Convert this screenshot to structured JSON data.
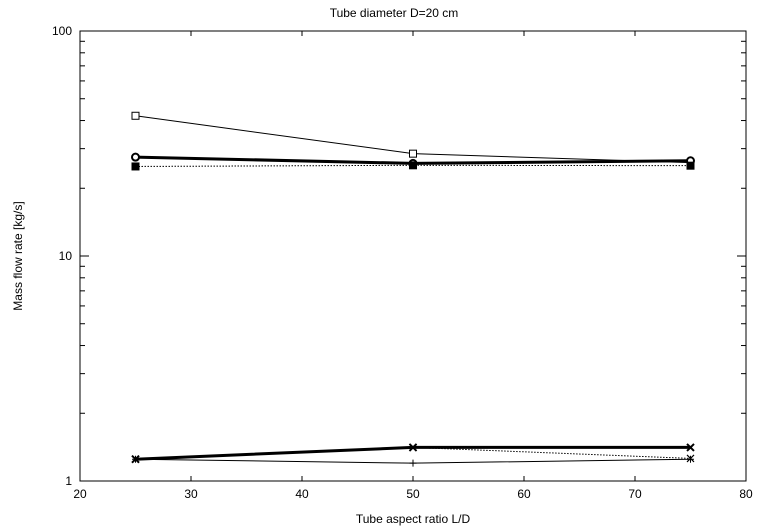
{
  "chart_data": {
    "type": "line",
    "title": "Tube diameter D=20 cm",
    "xlabel": "Tube aspect ratio L/D",
    "ylabel": "Mass flow rate [kg/s]",
    "xlim": [
      20,
      80
    ],
    "ylim": [
      1,
      100
    ],
    "yscale": "log",
    "grid": false,
    "x_ticks": [
      20,
      30,
      40,
      50,
      60,
      70,
      80
    ],
    "y_ticks": [
      1,
      10,
      100
    ],
    "x": [
      25,
      50,
      75
    ],
    "series": [
      {
        "values": [
          42.0,
          28.5,
          26.0
        ],
        "marker": "open-square",
        "line": "thin-solid"
      },
      {
        "values": [
          27.5,
          25.8,
          26.5
        ],
        "marker": "open-circle",
        "line": "thick-solid"
      },
      {
        "values": [
          25.0,
          25.3,
          25.2
        ],
        "marker": "filled-square",
        "line": "dotted"
      },
      {
        "values": [
          1.25,
          1.41,
          1.41
        ],
        "marker": "cross",
        "line": "thick-solid"
      },
      {
        "values": [
          1.25,
          1.41,
          1.26
        ],
        "marker": "x",
        "line": "dotted"
      },
      {
        "values": [
          1.25,
          1.2,
          1.25
        ],
        "marker": "plus",
        "line": "thin-solid"
      }
    ]
  }
}
